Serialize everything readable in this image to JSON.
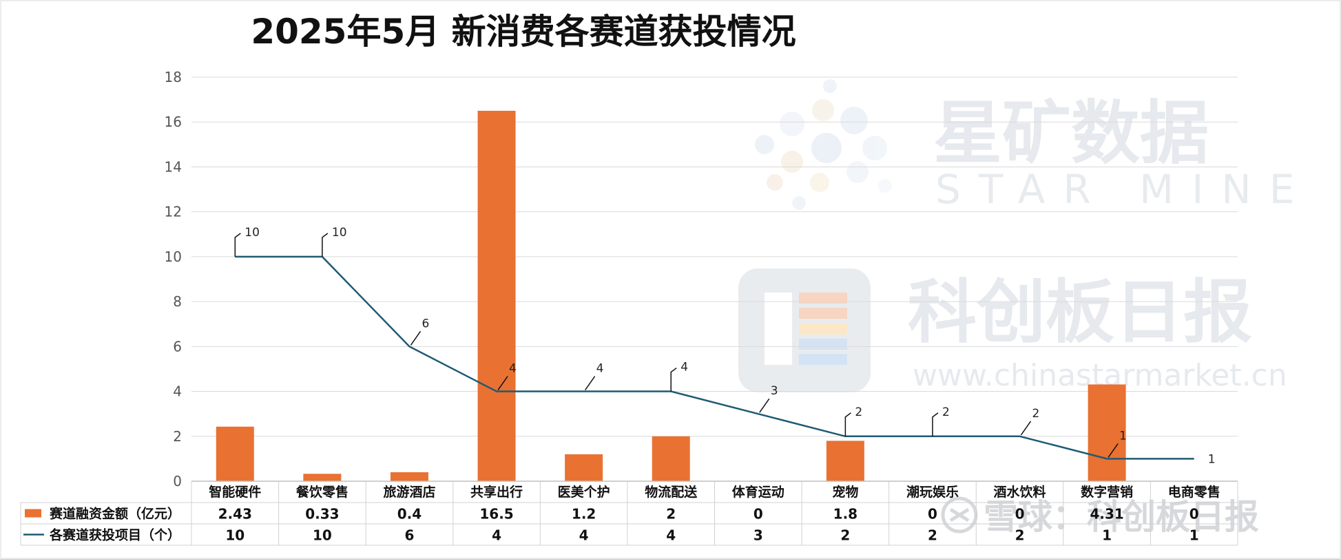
{
  "chart_data": {
    "type": "bar",
    "title": "2025年5月 新消费各赛道获投情况",
    "categories": [
      "智能硬件",
      "餐饮零售",
      "旅游酒店",
      "共享出行",
      "医美个护",
      "物流配送",
      "体育运动",
      "宠物",
      "潮玩娱乐",
      "酒水饮料",
      "数字营销",
      "电商零售"
    ],
    "y_ticks": [
      "0",
      "2",
      "4",
      "6",
      "8",
      "10",
      "12",
      "14",
      "16",
      "18"
    ],
    "ylim": [
      0,
      18
    ],
    "grid": true,
    "series": [
      {
        "name": "赛道融资金额（亿元）",
        "type": "bar",
        "color": "#e97132",
        "values": [
          2.43,
          0.33,
          0.4,
          16.5,
          1.2,
          2,
          0,
          1.8,
          0,
          0,
          4.31,
          0
        ],
        "table_text": [
          "2.43",
          "0.33",
          "0.4",
          "16.5",
          "1.2",
          "2",
          "0",
          "1.8",
          "0",
          "0",
          "4.31",
          "0"
        ]
      },
      {
        "name": "各赛道获投项目（个）",
        "type": "line",
        "color": "#1f5a73",
        "values": [
          10,
          10,
          6,
          4,
          4,
          4,
          3,
          2,
          2,
          2,
          1,
          1
        ],
        "table_text": [
          "10",
          "10",
          "6",
          "4",
          "4",
          "4",
          "3",
          "2",
          "2",
          "2",
          "1",
          "1"
        ]
      }
    ],
    "data_table": true
  },
  "watermarks": {
    "brand_cn": "星矿数据",
    "brand_en": "STAR MINE",
    "paper": "科创板日报",
    "url": "www.chinastarmarket.cn",
    "snowball": "雪球：科创板日报"
  }
}
